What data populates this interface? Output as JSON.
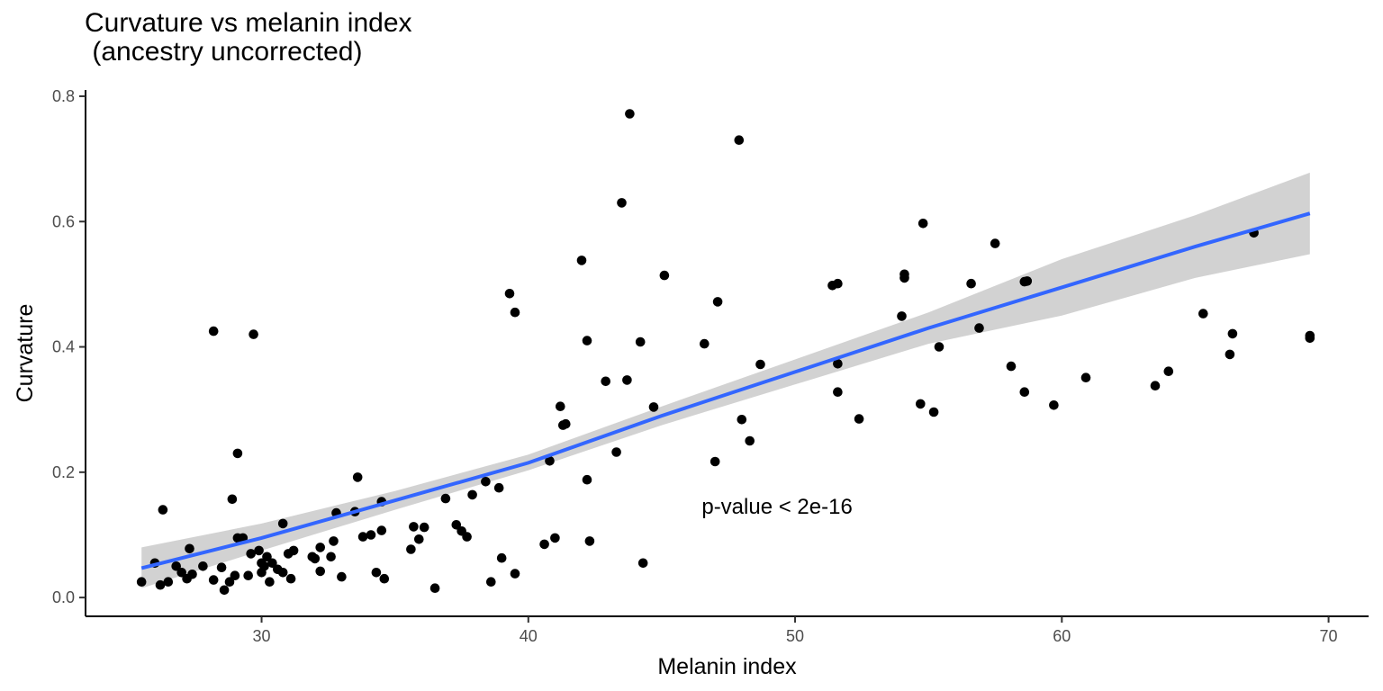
{
  "chart_data": {
    "type": "scatter",
    "title_line1": "Curvature vs melanin index",
    "title_line2": " (ancestry uncorrected)",
    "xlabel": "Melanin index",
    "ylabel": "Curvature",
    "xlim": [
      23.4,
      71.5
    ],
    "ylim": [
      -0.03,
      0.81
    ],
    "xticks": [
      30,
      40,
      50,
      60,
      70
    ],
    "yticks": [
      0.0,
      0.2,
      0.4,
      0.6,
      0.8
    ],
    "annotation": {
      "text": "p-value < 2e-16",
      "x": 46.5,
      "y": 0.145
    },
    "grid": false,
    "colors": {
      "points": "#000000",
      "line": "#3366ff",
      "ribbon": "#d0d0d0"
    },
    "fit": {
      "x": [
        25.5,
        30,
        35,
        40,
        45,
        50,
        55,
        60,
        65,
        69.3
      ],
      "y": [
        0.047,
        0.095,
        0.155,
        0.215,
        0.29,
        0.36,
        0.43,
        0.495,
        0.56,
        0.613
      ],
      "lo": [
        0.015,
        0.075,
        0.14,
        0.203,
        0.275,
        0.34,
        0.405,
        0.45,
        0.51,
        0.548
      ],
      "hi": [
        0.08,
        0.118,
        0.17,
        0.228,
        0.305,
        0.38,
        0.455,
        0.54,
        0.61,
        0.678
      ]
    },
    "points": [
      [
        25.5,
        0.025
      ],
      [
        26.0,
        0.055
      ],
      [
        26.2,
        0.02
      ],
      [
        26.3,
        0.14
      ],
      [
        26.5,
        0.025
      ],
      [
        26.8,
        0.05
      ],
      [
        27.0,
        0.04
      ],
      [
        27.2,
        0.03
      ],
      [
        27.3,
        0.078
      ],
      [
        27.4,
        0.037
      ],
      [
        27.8,
        0.05
      ],
      [
        28.2,
        0.425
      ],
      [
        28.2,
        0.028
      ],
      [
        28.5,
        0.048
      ],
      [
        28.6,
        0.012
      ],
      [
        28.8,
        0.025
      ],
      [
        28.9,
        0.157
      ],
      [
        29.0,
        0.035
      ],
      [
        29.1,
        0.095
      ],
      [
        29.1,
        0.23
      ],
      [
        29.3,
        0.095
      ],
      [
        29.5,
        0.035
      ],
      [
        29.6,
        0.07
      ],
      [
        29.7,
        0.42
      ],
      [
        29.9,
        0.075
      ],
      [
        30.0,
        0.04
      ],
      [
        30.0,
        0.055
      ],
      [
        30.1,
        0.05
      ],
      [
        30.2,
        0.065
      ],
      [
        30.3,
        0.025
      ],
      [
        30.4,
        0.055
      ],
      [
        30.6,
        0.045
      ],
      [
        30.8,
        0.118
      ],
      [
        30.8,
        0.04
      ],
      [
        31.0,
        0.07
      ],
      [
        31.1,
        0.03
      ],
      [
        31.2,
        0.075
      ],
      [
        31.9,
        0.065
      ],
      [
        32.0,
        0.062
      ],
      [
        32.2,
        0.08
      ],
      [
        32.2,
        0.042
      ],
      [
        32.6,
        0.065
      ],
      [
        32.7,
        0.09
      ],
      [
        32.8,
        0.135
      ],
      [
        33.0,
        0.033
      ],
      [
        33.5,
        0.137
      ],
      [
        33.6,
        0.192
      ],
      [
        33.8,
        0.097
      ],
      [
        34.1,
        0.1
      ],
      [
        34.3,
        0.04
      ],
      [
        34.5,
        0.107
      ],
      [
        34.5,
        0.153
      ],
      [
        34.6,
        0.03
      ],
      [
        35.6,
        0.077
      ],
      [
        35.7,
        0.113
      ],
      [
        35.9,
        0.093
      ],
      [
        36.1,
        0.112
      ],
      [
        36.5,
        0.015
      ],
      [
        36.9,
        0.158
      ],
      [
        37.3,
        0.116
      ],
      [
        37.5,
        0.106
      ],
      [
        37.7,
        0.097
      ],
      [
        37.9,
        0.164
      ],
      [
        38.4,
        0.185
      ],
      [
        38.6,
        0.025
      ],
      [
        38.9,
        0.175
      ],
      [
        39.0,
        0.063
      ],
      [
        39.3,
        0.485
      ],
      [
        39.5,
        0.455
      ],
      [
        39.5,
        0.038
      ],
      [
        40.6,
        0.085
      ],
      [
        40.8,
        0.218
      ],
      [
        41.0,
        0.095
      ],
      [
        41.2,
        0.305
      ],
      [
        41.3,
        0.275
      ],
      [
        41.4,
        0.277
      ],
      [
        42.0,
        0.538
      ],
      [
        42.2,
        0.41
      ],
      [
        42.2,
        0.188
      ],
      [
        42.3,
        0.09
      ],
      [
        42.9,
        0.345
      ],
      [
        43.3,
        0.232
      ],
      [
        43.5,
        0.63
      ],
      [
        43.7,
        0.347
      ],
      [
        43.8,
        0.772
      ],
      [
        44.2,
        0.408
      ],
      [
        44.3,
        0.055
      ],
      [
        45.1,
        0.514
      ],
      [
        44.7,
        0.304
      ],
      [
        46.6,
        0.405
      ],
      [
        47.1,
        0.472
      ],
      [
        47.0,
        0.217
      ],
      [
        47.9,
        0.73
      ],
      [
        48.0,
        0.284
      ],
      [
        48.3,
        0.25
      ],
      [
        48.7,
        0.372
      ],
      [
        51.4,
        0.498
      ],
      [
        51.6,
        0.501
      ],
      [
        51.6,
        0.373
      ],
      [
        51.6,
        0.328
      ],
      [
        52.4,
        0.285
      ],
      [
        54.1,
        0.516
      ],
      [
        54.1,
        0.51
      ],
      [
        54.0,
        0.449
      ],
      [
        54.8,
        0.597
      ],
      [
        54.7,
        0.309
      ],
      [
        55.2,
        0.296
      ],
      [
        55.4,
        0.4
      ],
      [
        56.6,
        0.501
      ],
      [
        56.9,
        0.43
      ],
      [
        57.5,
        0.565
      ],
      [
        58.1,
        0.369
      ],
      [
        58.6,
        0.328
      ],
      [
        58.6,
        0.504
      ],
      [
        58.7,
        0.505
      ],
      [
        59.7,
        0.307
      ],
      [
        60.9,
        0.351
      ],
      [
        63.5,
        0.338
      ],
      [
        64.0,
        0.361
      ],
      [
        65.3,
        0.453
      ],
      [
        66.3,
        0.388
      ],
      [
        66.4,
        0.421
      ],
      [
        67.2,
        0.582
      ],
      [
        69.3,
        0.414
      ],
      [
        69.3,
        0.418
      ]
    ]
  }
}
